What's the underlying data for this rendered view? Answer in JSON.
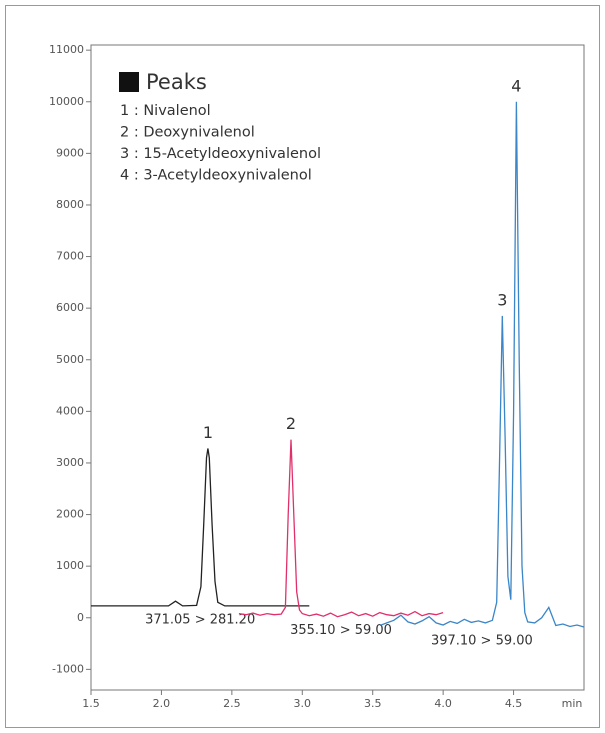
{
  "chart_data": {
    "type": "line",
    "x_label": "min",
    "xlim": [
      1.5,
      5.0
    ],
    "xticks": [
      {
        "value": 1.5,
        "label": "1.5"
      },
      {
        "value": 2.0,
        "label": "2.0"
      },
      {
        "value": 2.5,
        "label": "2.5"
      },
      {
        "value": 3.0,
        "label": "3.0"
      },
      {
        "value": 3.5,
        "label": "3.5"
      },
      {
        "value": 4.0,
        "label": "4.0"
      },
      {
        "value": 4.5,
        "label": "4.5"
      }
    ],
    "ylim": [
      -1400,
      11100
    ],
    "yticks": [
      -1000,
      0,
      1000,
      2000,
      3000,
      4000,
      5000,
      6000,
      7000,
      8000,
      9000,
      10000,
      11000
    ],
    "legend": {
      "title": "Peaks",
      "entries": [
        "1 : Nivalenol",
        "2 : Deoxynivalenol",
        "3 : 15-Acetyldeoxynivalenol",
        "4 : 3-Acetyldeoxynivalenol"
      ]
    },
    "peaks": [
      {
        "label": "1",
        "x": 2.33,
        "y": 3280
      },
      {
        "label": "2",
        "x": 2.92,
        "y": 3450
      },
      {
        "label": "3",
        "x": 4.42,
        "y": 5850
      },
      {
        "label": "4",
        "x": 4.52,
        "y": 10000
      }
    ],
    "series": [
      {
        "name": "371.05 > 281.20",
        "color": "#222222",
        "x": [
          1.5,
          1.7,
          1.9,
          2.05,
          2.1,
          2.15,
          2.25,
          2.28,
          2.3,
          2.32,
          2.33,
          2.34,
          2.36,
          2.38,
          2.4,
          2.45,
          2.6,
          2.8,
          3.05
        ],
        "values": [
          230,
          230,
          230,
          230,
          320,
          230,
          240,
          600,
          1800,
          3100,
          3280,
          3100,
          1800,
          700,
          300,
          230,
          230,
          230,
          230
        ]
      },
      {
        "name": "355.10 > 59.00",
        "color": "#e0306a",
        "x": [
          2.55,
          2.6,
          2.65,
          2.7,
          2.75,
          2.8,
          2.85,
          2.88,
          2.9,
          2.92,
          2.94,
          2.96,
          2.98,
          3.0,
          3.05,
          3.1,
          3.15,
          3.2,
          3.25,
          3.3,
          3.35,
          3.4,
          3.45,
          3.5,
          3.55,
          3.6,
          3.65,
          3.7,
          3.75,
          3.8,
          3.85,
          3.9,
          3.95,
          4.0
        ],
        "values": [
          80,
          60,
          90,
          50,
          80,
          60,
          70,
          200,
          2000,
          3450,
          2000,
          500,
          150,
          80,
          40,
          70,
          30,
          90,
          20,
          60,
          110,
          40,
          80,
          30,
          100,
          60,
          40,
          90,
          50,
          120,
          40,
          80,
          60,
          100
        ]
      },
      {
        "name": "397.10 > 59.00",
        "color": "#3a86c8",
        "x": [
          3.55,
          3.6,
          3.65,
          3.7,
          3.75,
          3.8,
          3.85,
          3.9,
          3.95,
          4.0,
          4.05,
          4.1,
          4.15,
          4.2,
          4.25,
          4.3,
          4.35,
          4.38,
          4.4,
          4.42,
          4.44,
          4.46,
          4.48,
          4.5,
          4.52,
          4.54,
          4.56,
          4.58,
          4.6,
          4.65,
          4.7,
          4.75,
          4.8,
          4.85,
          4.9,
          4.95,
          5.0
        ],
        "values": [
          -150,
          -100,
          -50,
          50,
          -80,
          -120,
          -60,
          20,
          -100,
          -140,
          -70,
          -110,
          -30,
          -90,
          -60,
          -100,
          -50,
          300,
          3000,
          5850,
          3500,
          800,
          350,
          4000,
          10000,
          5000,
          1000,
          100,
          -80,
          -100,
          0,
          200,
          -150,
          -120,
          -170,
          -140,
          -180
        ]
      }
    ]
  }
}
